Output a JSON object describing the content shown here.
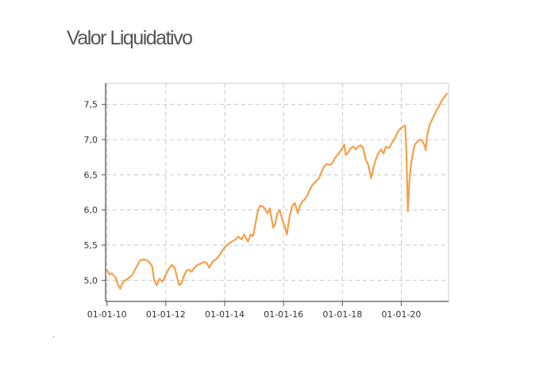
{
  "title": "Valor Liquidativo",
  "footnote": "-",
  "chart_data": {
    "type": "line",
    "title": "Valor Liquidativo",
    "xlabel": "",
    "ylabel": "",
    "x_tick_labels": [
      "01-01-10",
      "01-01-12",
      "01-01-14",
      "01-01-16",
      "01-01-18",
      "01-01-20"
    ],
    "y_tick_labels": [
      "5,0",
      "5,5",
      "6,0",
      "6,5",
      "7,0",
      "7,5"
    ],
    "y_ticks": [
      5.0,
      5.5,
      6.0,
      6.5,
      7.0,
      7.5
    ],
    "x_ticks": [
      "2010-01-01",
      "2012-01-01",
      "2014-01-01",
      "2016-01-01",
      "2018-01-01",
      "2020-01-01"
    ],
    "xlim": [
      "2009-12-15",
      "2021-08-10"
    ],
    "ylim": [
      4.7,
      7.8
    ],
    "grid": true,
    "color": "#f5a04a",
    "series": [
      {
        "points": [
          [
            "2010-01-01",
            5.15
          ],
          [
            "2010-02-01",
            5.08
          ],
          [
            "2010-03-01",
            5.1
          ],
          [
            "2010-04-15",
            5.05
          ],
          [
            "2010-05-20",
            4.93
          ],
          [
            "2010-06-15",
            4.88
          ],
          [
            "2010-07-15",
            4.97
          ],
          [
            "2010-08-15",
            5.0
          ],
          [
            "2010-09-15",
            5.02
          ],
          [
            "2010-10-15",
            5.05
          ],
          [
            "2010-11-15",
            5.08
          ],
          [
            "2010-12-15",
            5.15
          ],
          [
            "2011-01-15",
            5.22
          ],
          [
            "2011-02-15",
            5.28
          ],
          [
            "2011-04-01",
            5.3
          ],
          [
            "2011-05-15",
            5.28
          ],
          [
            "2011-06-15",
            5.25
          ],
          [
            "2011-07-15",
            5.2
          ],
          [
            "2011-08-10",
            5.0
          ],
          [
            "2011-09-10",
            4.93
          ],
          [
            "2011-10-15",
            5.02
          ],
          [
            "2011-11-20",
            4.98
          ],
          [
            "2011-12-20",
            5.05
          ],
          [
            "2012-02-01",
            5.15
          ],
          [
            "2012-03-15",
            5.22
          ],
          [
            "2012-04-20",
            5.18
          ],
          [
            "2012-05-25",
            5.02
          ],
          [
            "2012-06-15",
            4.93
          ],
          [
            "2012-07-15",
            4.96
          ],
          [
            "2012-08-15",
            5.07
          ],
          [
            "2012-09-15",
            5.14
          ],
          [
            "2012-10-15",
            5.15
          ],
          [
            "2012-11-15",
            5.12
          ],
          [
            "2012-12-20",
            5.18
          ],
          [
            "2013-02-01",
            5.22
          ],
          [
            "2013-03-15",
            5.24
          ],
          [
            "2013-04-20",
            5.26
          ],
          [
            "2013-05-20",
            5.25
          ],
          [
            "2013-06-25",
            5.18
          ],
          [
            "2013-08-01",
            5.26
          ],
          [
            "2013-09-15",
            5.3
          ],
          [
            "2013-10-20",
            5.34
          ],
          [
            "2013-11-20",
            5.4
          ],
          [
            "2014-01-01",
            5.47
          ],
          [
            "2014-02-15",
            5.52
          ],
          [
            "2014-04-01",
            5.55
          ],
          [
            "2014-05-15",
            5.58
          ],
          [
            "2014-06-20",
            5.62
          ],
          [
            "2014-08-01",
            5.58
          ],
          [
            "2014-09-01",
            5.65
          ],
          [
            "2014-10-15",
            5.55
          ],
          [
            "2014-11-20",
            5.65
          ],
          [
            "2014-12-20",
            5.63
          ],
          [
            "2015-01-20",
            5.82
          ],
          [
            "2015-02-15",
            5.98
          ],
          [
            "2015-03-15",
            6.06
          ],
          [
            "2015-04-15",
            6.05
          ],
          [
            "2015-05-15",
            6.02
          ],
          [
            "2015-06-15",
            5.95
          ],
          [
            "2015-07-15",
            6.02
          ],
          [
            "2015-08-25",
            5.75
          ],
          [
            "2015-09-20",
            5.8
          ],
          [
            "2015-10-15",
            5.95
          ],
          [
            "2015-11-15",
            6.0
          ],
          [
            "2015-12-20",
            5.85
          ],
          [
            "2016-01-20",
            5.75
          ],
          [
            "2016-02-11",
            5.65
          ],
          [
            "2016-03-15",
            5.9
          ],
          [
            "2016-04-15",
            6.05
          ],
          [
            "2016-05-20",
            6.1
          ],
          [
            "2016-06-27",
            5.95
          ],
          [
            "2016-07-20",
            6.05
          ],
          [
            "2016-08-20",
            6.12
          ],
          [
            "2016-09-20",
            6.15
          ],
          [
            "2016-10-20",
            6.2
          ],
          [
            "2016-11-20",
            6.28
          ],
          [
            "2016-12-20",
            6.35
          ],
          [
            "2017-02-01",
            6.4
          ],
          [
            "2017-03-15",
            6.45
          ],
          [
            "2017-04-20",
            6.55
          ],
          [
            "2017-05-20",
            6.62
          ],
          [
            "2017-06-20",
            6.65
          ],
          [
            "2017-08-01",
            6.64
          ],
          [
            "2017-09-01",
            6.67
          ],
          [
            "2017-10-01",
            6.74
          ],
          [
            "2017-11-01",
            6.78
          ],
          [
            "2017-12-15",
            6.85
          ],
          [
            "2018-01-25",
            6.93
          ],
          [
            "2018-02-10",
            6.78
          ],
          [
            "2018-03-15",
            6.82
          ],
          [
            "2018-04-15",
            6.88
          ],
          [
            "2018-05-15",
            6.9
          ],
          [
            "2018-06-15",
            6.86
          ],
          [
            "2018-07-15",
            6.9
          ],
          [
            "2018-08-15",
            6.92
          ],
          [
            "2018-09-15",
            6.88
          ],
          [
            "2018-10-15",
            6.72
          ],
          [
            "2018-11-15",
            6.65
          ],
          [
            "2018-12-24",
            6.45
          ],
          [
            "2019-01-20",
            6.6
          ],
          [
            "2019-02-20",
            6.72
          ],
          [
            "2019-03-20",
            6.8
          ],
          [
            "2019-04-25",
            6.86
          ],
          [
            "2019-05-25",
            6.8
          ],
          [
            "2019-06-25",
            6.9
          ],
          [
            "2019-08-05",
            6.88
          ],
          [
            "2019-09-15",
            6.97
          ],
          [
            "2019-10-15",
            7.02
          ],
          [
            "2019-11-15",
            7.1
          ],
          [
            "2019-12-15",
            7.15
          ],
          [
            "2020-01-20",
            7.18
          ],
          [
            "2020-02-19",
            7.2
          ],
          [
            "2020-03-05",
            6.8
          ],
          [
            "2020-03-23",
            5.98
          ],
          [
            "2020-04-10",
            6.4
          ],
          [
            "2020-05-01",
            6.65
          ],
          [
            "2020-06-08",
            6.9
          ],
          [
            "2020-07-01",
            6.95
          ],
          [
            "2020-08-15",
            7.0
          ],
          [
            "2020-09-15",
            6.98
          ],
          [
            "2020-10-15",
            6.92
          ],
          [
            "2020-10-30",
            6.85
          ],
          [
            "2020-11-15",
            7.05
          ],
          [
            "2020-12-15",
            7.2
          ],
          [
            "2021-01-15",
            7.28
          ],
          [
            "2021-02-15",
            7.35
          ],
          [
            "2021-03-15",
            7.42
          ],
          [
            "2021-04-15",
            7.48
          ],
          [
            "2021-05-15",
            7.55
          ],
          [
            "2021-06-15",
            7.6
          ],
          [
            "2021-07-20",
            7.65
          ]
        ]
      }
    ]
  }
}
